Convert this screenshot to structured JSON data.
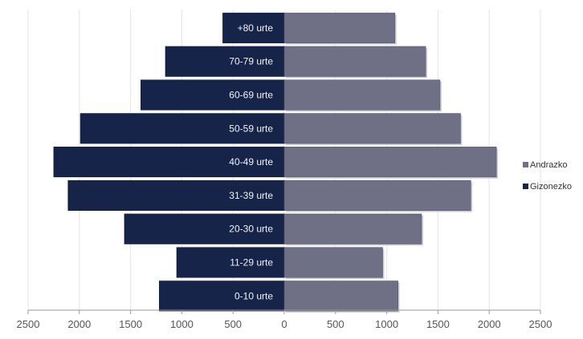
{
  "chart_data": {
    "type": "bar",
    "orientation": "horizontal-pyramid",
    "categories": [
      "+80 urte",
      "70-79 urte",
      "60-69 urte",
      "50-59 urte",
      "40-49 urte",
      "31-39 urte",
      "20-30 urte",
      "11-29 urte",
      "0-10 urte"
    ],
    "series": [
      {
        "name": "Andrazko",
        "side": "right",
        "color": "#6f6f85",
        "values": [
          1080,
          1380,
          1520,
          1720,
          2070,
          1820,
          1340,
          960,
          1110
        ]
      },
      {
        "name": "Gizonezko",
        "side": "left",
        "color": "#16244a",
        "values": [
          600,
          1160,
          1400,
          1990,
          2250,
          2110,
          1560,
          1050,
          1220
        ]
      }
    ],
    "x_ticks": [
      "2500",
      "2000",
      "1500",
      "1000",
      "500",
      "0",
      "500",
      "1000",
      "1500",
      "2000",
      "2500"
    ],
    "xlim": [
      -2500,
      2500
    ],
    "grid": true,
    "legend_position": "right",
    "title": "",
    "xlabel": "",
    "ylabel": ""
  }
}
